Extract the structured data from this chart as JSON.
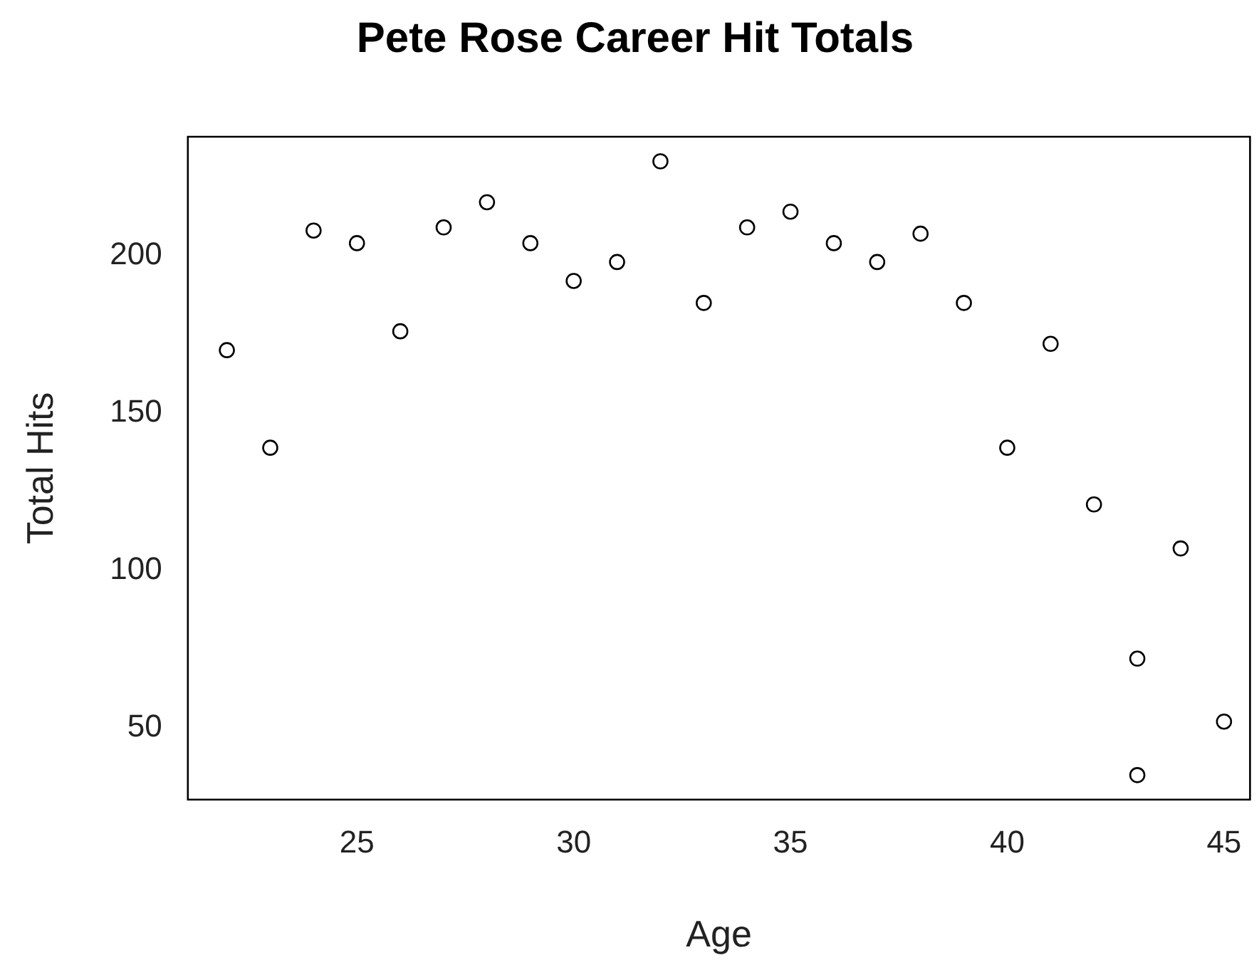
{
  "chart_data": {
    "type": "scatter",
    "title": "Pete Rose Career Hit Totals",
    "xlabel": "Age",
    "ylabel": "Total Hits",
    "x": [
      22,
      23,
      24,
      25,
      26,
      27,
      28,
      29,
      30,
      31,
      32,
      33,
      34,
      35,
      36,
      37,
      38,
      39,
      40,
      41,
      42,
      43,
      43,
      44,
      45
    ],
    "values": [
      170,
      139,
      208,
      204,
      176,
      209,
      217,
      204,
      192,
      198,
      230,
      185,
      209,
      214,
      204,
      198,
      207,
      185,
      139,
      172,
      121,
      72,
      35,
      107,
      52
    ],
    "color": "#000000",
    "marker": "circle",
    "xlim": [
      21.1,
      45.6
    ],
    "xticks": [
      25,
      30,
      35,
      40,
      45
    ],
    "ylim": [
      27.2,
      237.8
    ],
    "yticks": [
      50,
      100,
      150,
      200
    ],
    "grid": false,
    "legend": false
  }
}
